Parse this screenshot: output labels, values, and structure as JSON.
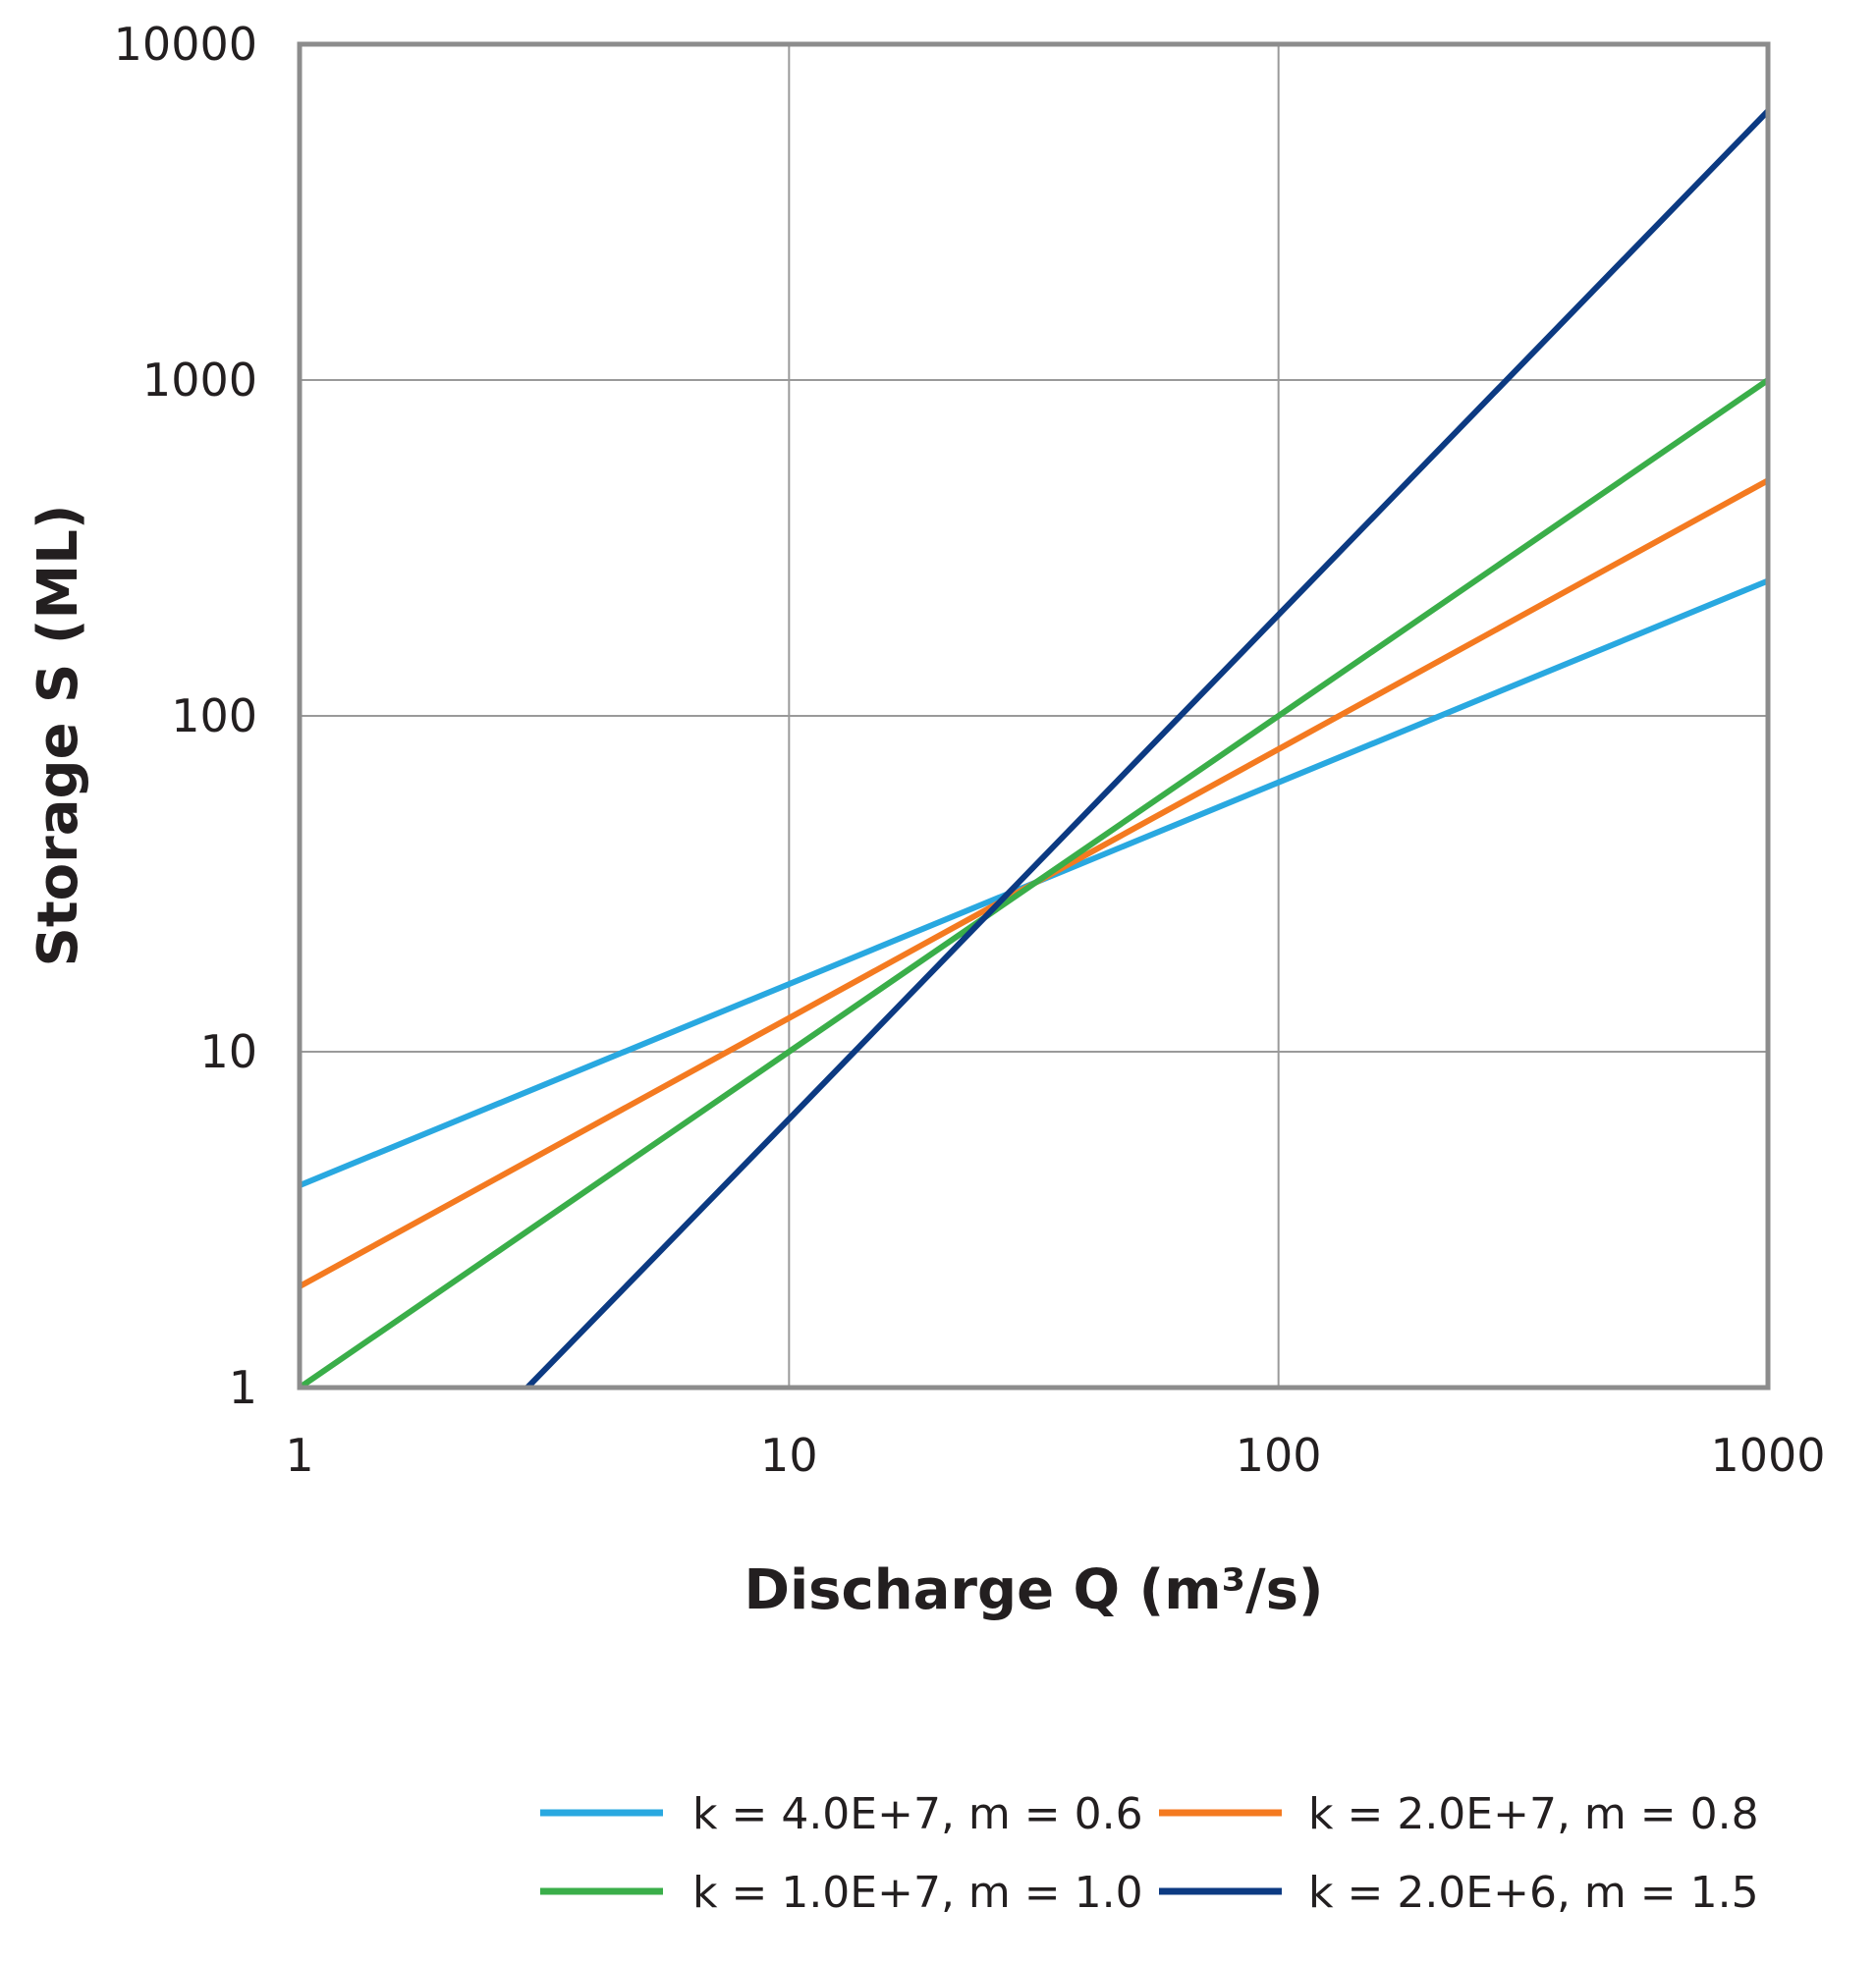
{
  "chart_data": {
    "type": "line",
    "xlabel": "Discharge Q (m³/s)",
    "ylabel": "Storage S  (ML)",
    "x_scale": "log",
    "y_scale": "log",
    "xlim": [
      1,
      1000
    ],
    "ylim": [
      1,
      10000
    ],
    "x_ticks": [
      "1",
      "10",
      "100",
      "1000"
    ],
    "y_ticks": [
      "1",
      "10",
      "100",
      "1000",
      "10000"
    ],
    "grid": true,
    "legend_position": "bottom",
    "series": [
      {
        "name": "k = 4.0E+7, m = 0.6",
        "color": "#29a8e0",
        "x": [
          1,
          10,
          100,
          1000
        ],
        "y": [
          4.0,
          15.9,
          63.4,
          252.4
        ]
      },
      {
        "name": "k = 2.0E+7, m = 0.8",
        "color": "#f47a20",
        "x": [
          1,
          10,
          100,
          1000
        ],
        "y": [
          2.0,
          12.6,
          79.6,
          502.4
        ]
      },
      {
        "name": "k = 1.0E+7, m = 1.0",
        "color": "#3aae49",
        "x": [
          1,
          10,
          100,
          1000
        ],
        "y": [
          1.0,
          10.0,
          100.0,
          1000.0
        ]
      },
      {
        "name": "k = 2.0E+6, m = 1.5",
        "color": "#0c3a82",
        "x": [
          2.92,
          10,
          100,
          1000
        ],
        "y": [
          1.0,
          6.3,
          200.0,
          6324.6
        ]
      }
    ]
  }
}
